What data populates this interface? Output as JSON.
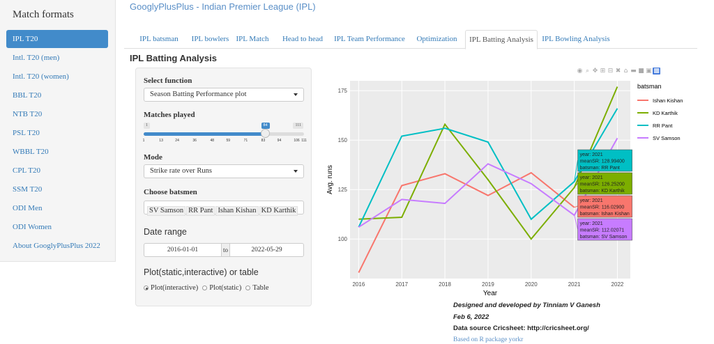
{
  "sidebar": {
    "title": "Match formats",
    "items": [
      {
        "label": "IPL T20",
        "active": true
      },
      {
        "label": "Intl. T20 (men)"
      },
      {
        "label": "Intl. T20 (women)"
      },
      {
        "label": "BBL T20"
      },
      {
        "label": "NTB T20"
      },
      {
        "label": "PSL T20"
      },
      {
        "label": "WBBL T20"
      },
      {
        "label": "CPL T20"
      },
      {
        "label": "SSM T20"
      },
      {
        "label": "ODI Men"
      },
      {
        "label": "ODI Women"
      },
      {
        "label": "About GooglyPlusPlus 2022"
      }
    ]
  },
  "header": {
    "title": "GooglyPlusPlus - Indian Premier League (IPL)"
  },
  "tabs": [
    {
      "label": "IPL batsman"
    },
    {
      "label": "IPL bowlers"
    },
    {
      "label": "IPL Match"
    },
    {
      "label": "Head to head"
    },
    {
      "label": "IPL Team Performance"
    },
    {
      "label": "Optimization"
    },
    {
      "label": "IPL Batting Analysis",
      "active": true
    },
    {
      "label": "IPL Bowling Analysis"
    }
  ],
  "section_title": "IPL Batting Analysis",
  "form": {
    "select_function_label": "Select function",
    "select_function_value": "Season Batting Performance plot",
    "matches_label": "Matches played",
    "slider": {
      "min": "1",
      "max": "111",
      "value": "84",
      "value_fraction": 0.7545,
      "ticks": [
        "1",
        "13",
        "24",
        "36",
        "48",
        "59",
        "71",
        "83",
        "94",
        "106",
        "111"
      ]
    },
    "mode_label": "Mode",
    "mode_value": "Strike rate over Runs",
    "batsmen_label": "Choose batsmen",
    "batsmen": [
      "SV Samson",
      "RR Pant",
      "Ishan Kishan",
      "KD Karthik"
    ],
    "date_range_label": "Date range",
    "date_from": "2016-01-01",
    "date_sep": "to",
    "date_to": "2022-05-29",
    "plot_label": "Plot(static,interactive) or table",
    "radios": [
      {
        "label": "Plot(interactive)",
        "checked": true
      },
      {
        "label": "Plot(static)",
        "checked": false
      },
      {
        "label": "Table",
        "checked": false
      }
    ]
  },
  "footer": {
    "designed": "Designed and developed by Tinniam V Ganesh",
    "date": "Feb 6, 2022",
    "source": "Data source Cricsheet: http://cricsheet.org/",
    "based": "Based on R package yorkr"
  },
  "chart_data": {
    "type": "line",
    "xlabel": "Year",
    "ylabel": "Avg. runs",
    "x": [
      2016,
      2017,
      2018,
      2019,
      2020,
      2021,
      2022
    ],
    "xlim": [
      2015.8,
      2022.3
    ],
    "ylim": [
      80,
      180
    ],
    "yticks": [
      100,
      125,
      150,
      175
    ],
    "grid": true,
    "legend": {
      "title": "batsman",
      "position": "right"
    },
    "series": [
      {
        "name": "Ishan Kishan",
        "color": "#F8766D",
        "values": [
          83,
          127,
          133,
          122,
          133.5,
          116,
          null
        ]
      },
      {
        "name": "KD Karthik",
        "color": "#7CAE00",
        "values": [
          110,
          111,
          158,
          130,
          100,
          126,
          177
        ]
      },
      {
        "name": "RR Pant",
        "color": "#00BFC4",
        "values": [
          106,
          152,
          156,
          149,
          110,
          129,
          166
        ]
      },
      {
        "name": "SV Samson",
        "color": "#C77CFF",
        "values": [
          106,
          120,
          118,
          138,
          128,
          112,
          151
        ]
      }
    ],
    "hover": [
      {
        "series": "RR Pant",
        "lines": [
          "year: 2021",
          "meanSR: 128.99400",
          "batsman: RR Pant"
        ]
      },
      {
        "series": "KD Karthik",
        "lines": [
          "year: 2021",
          "meanSR: 126.25200",
          "batsman: KD Karthik"
        ]
      },
      {
        "series": "Ishan Kishan",
        "lines": [
          "year: 2021",
          "meanSR: 116.02900",
          "batsman: Ishan Kishan"
        ]
      },
      {
        "series": "SV Samson",
        "lines": [
          "year: 2021",
          "meanSR: 112.02071",
          "batsman: SV Samson"
        ]
      }
    ]
  }
}
